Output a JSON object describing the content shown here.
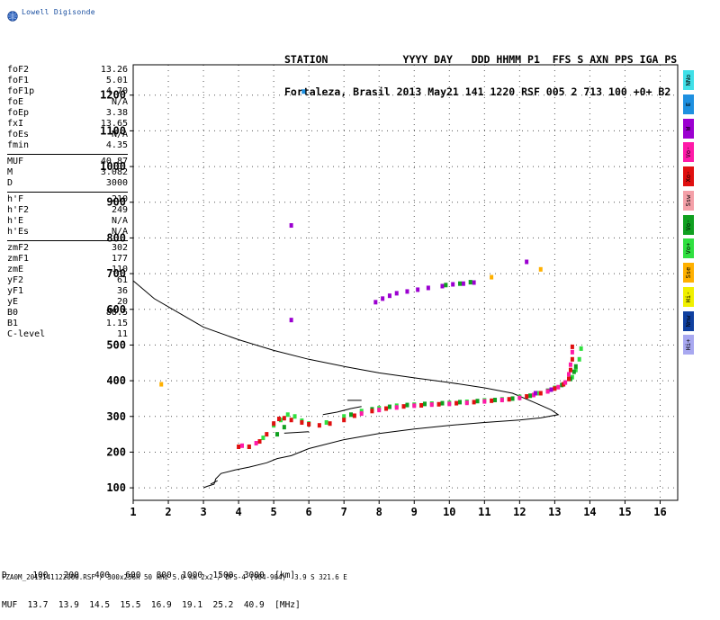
{
  "brand": {
    "text": "Lowell Digisonde",
    "icon": "globe-icon"
  },
  "header": {
    "line1": "STATION            YYYY DAY   DDD HHMM P1  FFS S AXN PPS IGA PS",
    "line2": "Fortaleza, Brasil 2013 May21 141 1220 RSF 005 2 713 100 +0+ B2"
  },
  "params": [
    [
      [
        "foF2",
        "13.26"
      ],
      [
        "foF1",
        "5.01"
      ],
      [
        "foF1p",
        "4.70"
      ],
      [
        "foE",
        "N/A"
      ],
      [
        "foEp",
        "3.38"
      ],
      [
        "fxI",
        "13.65"
      ],
      [
        "foEs",
        "N/A"
      ],
      [
        "fmin",
        "4.35"
      ]
    ],
    [
      [
        "MUF",
        "40.87"
      ],
      [
        "M",
        "3.082"
      ],
      [
        "D",
        "3000"
      ]
    ],
    [
      [
        "h'F",
        "210"
      ],
      [
        "h'F2",
        "249"
      ],
      [
        "h'E",
        "N/A"
      ],
      [
        "h'Es",
        "N/A"
      ]
    ],
    [
      [
        "zmF2",
        "302"
      ],
      [
        "zmF1",
        "177"
      ],
      [
        "zmE",
        "110"
      ],
      [
        "yF2",
        "61"
      ],
      [
        "yF1",
        "36"
      ],
      [
        "yE",
        "20"
      ],
      [
        "B0",
        "88.5"
      ],
      [
        "B1",
        "1.15"
      ],
      [
        "C-level",
        "11"
      ]
    ]
  ],
  "legend": [
    {
      "label": "NNo",
      "color": "#40e0e8"
    },
    {
      "label": "E",
      "color": "#1e90e0"
    },
    {
      "label": "W",
      "color": "#9b00d0"
    },
    {
      "label": "Vo-",
      "color": "#ff1aa8"
    },
    {
      "label": "Xo-",
      "color": "#e01010"
    },
    {
      "label": "Ssw",
      "color": "#f4a0a8"
    },
    {
      "label": "Vo-",
      "color": "#10a020"
    },
    {
      "label": "Vo+",
      "color": "#30e040"
    },
    {
      "label": "Sse",
      "color": "#ffb000"
    },
    {
      "label": "Hi-",
      "color": "#f0f000"
    },
    {
      "label": "Nnw",
      "color": "#1040a0"
    },
    {
      "label": "Hi+",
      "color": "#a8a8f0"
    }
  ],
  "bottom": {
    "line1": "D     100   200   400   600   800  1000  1500  3000  [km]",
    "line2": "MUF  13.7  13.9  14.5  15.5  16.9  19.1  25.2  40.9  [MHz]"
  },
  "footer": "FZA0M_2013141122000.RSF / 300x256h 50 kHz 5.0 km 2x2 / DPS-4 (904-904)  3.9 S 321.6 E",
  "chart_data": {
    "type": "scatter",
    "x_ticks": [
      "1",
      "2",
      "3",
      "4",
      "5",
      "6",
      "7",
      "8",
      "9",
      "10",
      "11",
      "12",
      "13",
      "14",
      "15",
      "16"
    ],
    "y_ticks": [
      "100",
      "200",
      "300",
      "400",
      "500",
      "600",
      "700",
      "800",
      "900",
      "1000",
      "1100",
      "1200"
    ],
    "xlim": [
      1,
      16.5
    ],
    "ylim": [
      65,
      1285
    ],
    "grid": true,
    "series": [
      {
        "kind": "line",
        "color": "#000000",
        "points": [
          [
            1,
            680
          ],
          [
            1.6,
            630
          ],
          [
            2.3,
            590
          ],
          [
            3,
            550
          ],
          [
            4,
            515
          ],
          [
            5,
            485
          ],
          [
            6,
            460
          ],
          [
            7,
            440
          ],
          [
            8,
            422
          ],
          [
            9,
            408
          ],
          [
            10,
            395
          ],
          [
            11,
            380
          ],
          [
            11.8,
            365
          ],
          [
            12.4,
            340
          ],
          [
            12.9,
            318
          ],
          [
            13.1,
            305
          ],
          [
            12.6,
            296
          ],
          [
            12,
            290
          ],
          [
            11,
            283
          ],
          [
            10,
            275
          ],
          [
            9,
            265
          ],
          [
            8,
            252
          ],
          [
            7,
            235
          ],
          [
            6,
            210
          ],
          [
            5.5,
            190
          ],
          [
            5.1,
            182
          ],
          [
            4.8,
            170
          ],
          [
            4.3,
            158
          ],
          [
            3.9,
            150
          ],
          [
            3.5,
            140
          ],
          [
            3.35,
            125
          ],
          [
            3.3,
            110
          ],
          [
            3.1,
            104
          ],
          [
            3,
            100
          ]
        ]
      },
      {
        "kind": "line",
        "color": "#000000",
        "points": [
          [
            6.4,
            305
          ],
          [
            6.8,
            312
          ],
          [
            7.2,
            322
          ],
          [
            7.5,
            328
          ]
        ]
      },
      {
        "kind": "line",
        "color": "#000000",
        "points": [
          [
            7.1,
            345
          ],
          [
            7.5,
            345
          ]
        ]
      },
      {
        "kind": "line",
        "color": "#000000",
        "points": [
          [
            5.3,
            253
          ],
          [
            6,
            257
          ]
        ]
      },
      {
        "kind": "line",
        "color": "#000000",
        "points": [
          [
            3.2,
            110
          ],
          [
            3.4,
            120
          ]
        ]
      },
      {
        "kind": "dots",
        "color": "#30e040",
        "points": [
          [
            4.3,
            215
          ],
          [
            4.7,
            240
          ],
          [
            5,
            275
          ],
          [
            5.2,
            290
          ],
          [
            5.4,
            305
          ],
          [
            5.6,
            300
          ],
          [
            5.8,
            288
          ],
          [
            6,
            280
          ],
          [
            6.5,
            283
          ],
          [
            7,
            300
          ],
          [
            7.5,
            315
          ],
          [
            8,
            323
          ],
          [
            8.5,
            330
          ],
          [
            9,
            333
          ],
          [
            9.5,
            336
          ],
          [
            10,
            338
          ],
          [
            10.5,
            341
          ],
          [
            11,
            345
          ],
          [
            11.5,
            348
          ],
          [
            12,
            355
          ],
          [
            12.5,
            365
          ],
          [
            13,
            380
          ],
          [
            13.3,
            395
          ],
          [
            13.5,
            410
          ],
          [
            13.6,
            430
          ],
          [
            13.7,
            460
          ],
          [
            13.75,
            490
          ]
        ]
      },
      {
        "kind": "dots",
        "color": "#10a020",
        "points": [
          [
            5.1,
            250
          ],
          [
            5.3,
            270
          ],
          [
            7.2,
            305
          ],
          [
            7.8,
            320
          ],
          [
            8.3,
            327
          ],
          [
            8.8,
            332
          ],
          [
            9.3,
            335
          ],
          [
            9.8,
            337
          ],
          [
            10.3,
            340
          ],
          [
            10.8,
            343
          ],
          [
            11.3,
            346
          ],
          [
            11.8,
            350
          ],
          [
            12.3,
            358
          ],
          [
            12.8,
            372
          ],
          [
            13.2,
            388
          ],
          [
            13.45,
            405
          ],
          [
            13.55,
            425
          ],
          [
            13.6,
            440
          ]
        ]
      },
      {
        "kind": "dots",
        "color": "#e01010",
        "points": [
          [
            4,
            215
          ],
          [
            4.3,
            215
          ],
          [
            4.6,
            230
          ],
          [
            4.8,
            250
          ],
          [
            5,
            280
          ],
          [
            5.15,
            293
          ],
          [
            5.3,
            295
          ],
          [
            5.5,
            290
          ],
          [
            5.8,
            283
          ],
          [
            6,
            278
          ],
          [
            6.3,
            275
          ],
          [
            6.6,
            280
          ],
          [
            7,
            290
          ],
          [
            7.3,
            302
          ],
          [
            7.8,
            315
          ],
          [
            8.2,
            322
          ],
          [
            8.7,
            328
          ],
          [
            9.2,
            331
          ],
          [
            9.7,
            334
          ],
          [
            10.2,
            337
          ],
          [
            10.7,
            340
          ],
          [
            11.2,
            344
          ],
          [
            11.7,
            348
          ],
          [
            12.2,
            356
          ],
          [
            12.6,
            365
          ],
          [
            13,
            378
          ],
          [
            13.25,
            390
          ],
          [
            13.4,
            405
          ],
          [
            13.45,
            430
          ],
          [
            13.5,
            460
          ],
          [
            13.5,
            495
          ]
        ]
      },
      {
        "kind": "dots",
        "color": "#ff1aa8",
        "points": [
          [
            4.1,
            218
          ],
          [
            4.5,
            225
          ],
          [
            7.5,
            308
          ],
          [
            8,
            318
          ],
          [
            8.5,
            325
          ],
          [
            9,
            330
          ],
          [
            9.5,
            333
          ],
          [
            10,
            335
          ],
          [
            10.5,
            338
          ],
          [
            11,
            342
          ],
          [
            11.5,
            346
          ],
          [
            12,
            352
          ],
          [
            12.4,
            360
          ],
          [
            12.8,
            370
          ],
          [
            13.1,
            382
          ],
          [
            13.3,
            395
          ],
          [
            13.4,
            418
          ],
          [
            13.45,
            445
          ],
          [
            13.5,
            480
          ]
        ]
      },
      {
        "kind": "dots",
        "color": "#9b00d0",
        "points": [
          [
            7.9,
            620
          ],
          [
            8.1,
            630
          ],
          [
            8.3,
            638
          ],
          [
            8.5,
            645
          ],
          [
            8.8,
            650
          ],
          [
            9.1,
            655
          ],
          [
            9.4,
            660
          ],
          [
            9.8,
            665
          ],
          [
            10.1,
            670
          ],
          [
            10.4,
            672
          ],
          [
            10.7,
            675
          ],
          [
            12.2,
            733
          ],
          [
            5.5,
            835
          ],
          [
            5.5,
            570
          ],
          [
            12.45,
            365
          ],
          [
            12.9,
            375
          ]
        ]
      },
      {
        "kind": "dots",
        "color": "#10a020",
        "points": [
          [
            9.9,
            668
          ],
          [
            10.3,
            672
          ],
          [
            10.6,
            676
          ]
        ]
      },
      {
        "kind": "dots",
        "color": "#1e90e0",
        "points": [
          [
            5.85,
            1210
          ]
        ]
      },
      {
        "kind": "dots",
        "color": "#ffb000",
        "points": [
          [
            1.8,
            390
          ],
          [
            11.2,
            690
          ],
          [
            12.6,
            712
          ]
        ]
      }
    ]
  }
}
